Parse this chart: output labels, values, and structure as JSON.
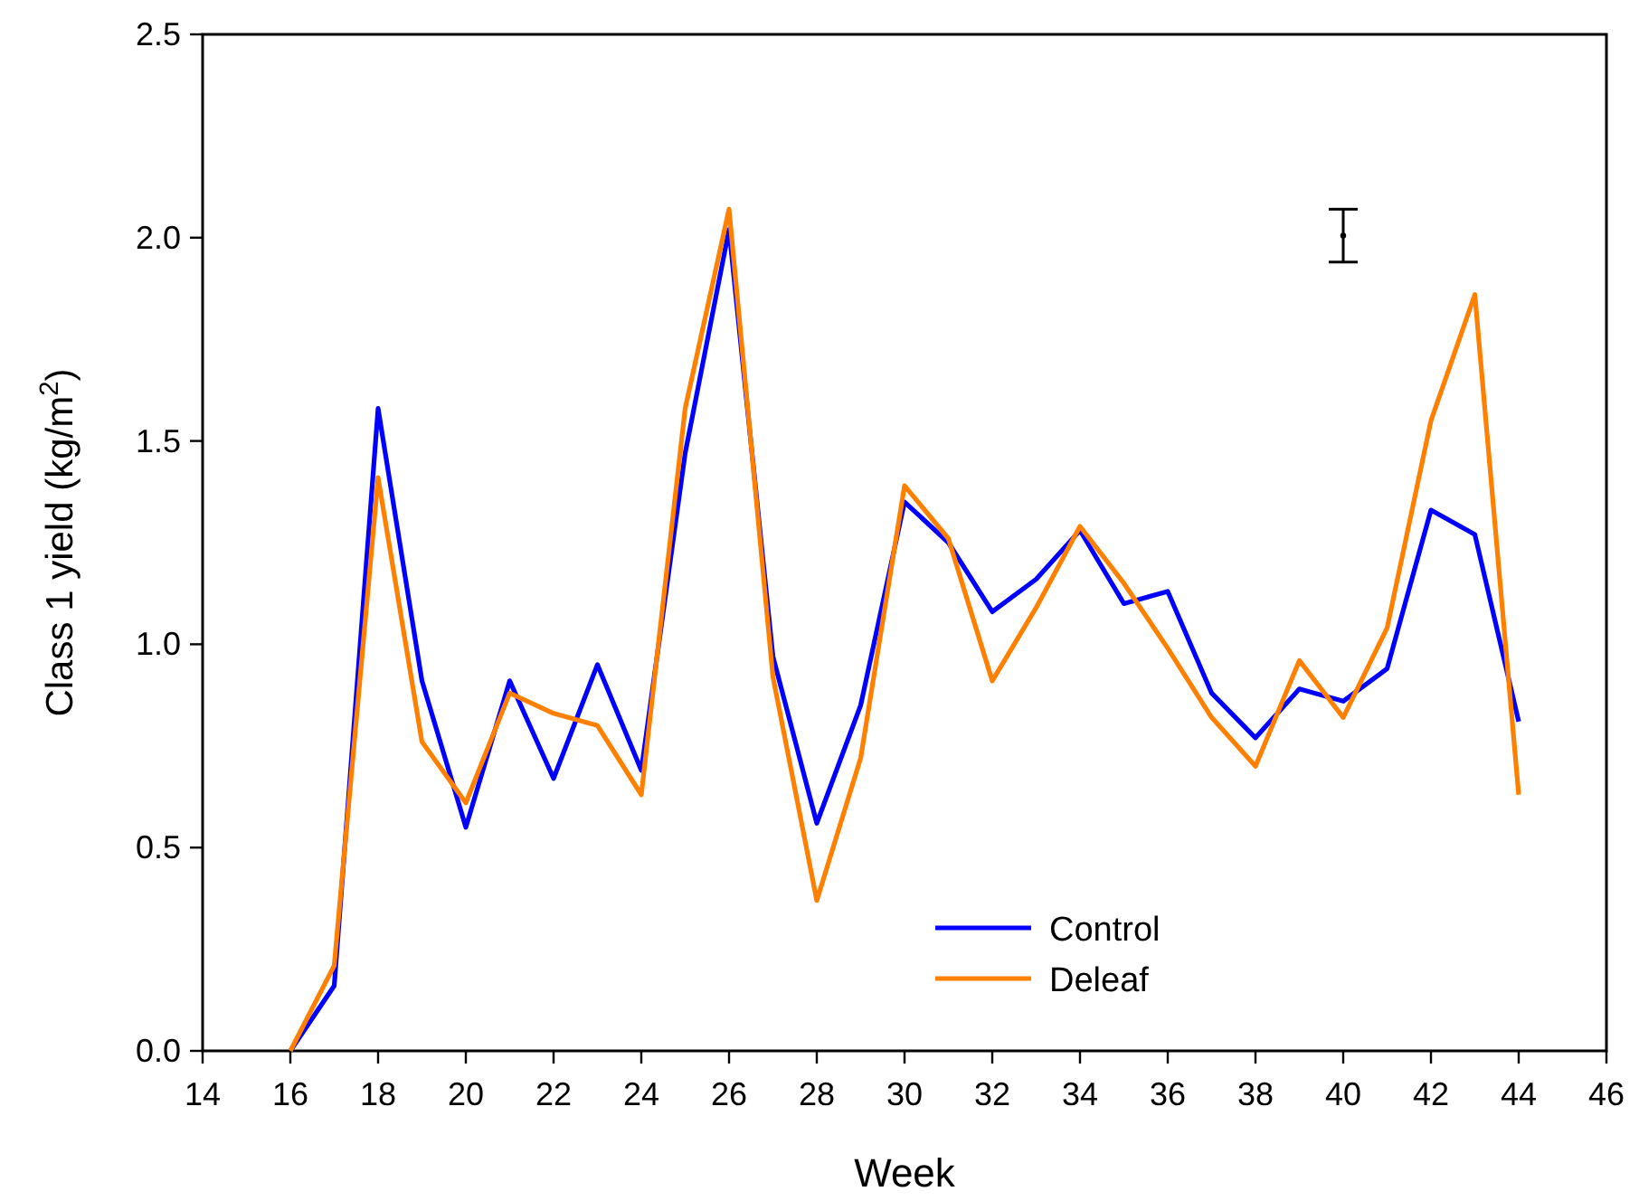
{
  "chart_data": {
    "type": "line",
    "xlabel": "Week",
    "ylabel": "Class 1 yield (kg/m$^{2}$)",
    "x": [
      16,
      17,
      18,
      19,
      20,
      21,
      22,
      23,
      24,
      25,
      26,
      27,
      28,
      29,
      30,
      31,
      32,
      33,
      34,
      35,
      36,
      37,
      38,
      39,
      40,
      41,
      42,
      43,
      44
    ],
    "series": [
      {
        "name": "Control",
        "color": "#0000ff",
        "values": [
          0,
          0.16,
          1.58,
          0.91,
          0.55,
          0.91,
          0.67,
          0.95,
          0.69,
          1.47,
          2.02,
          0.97,
          0.56,
          0.85,
          1.35,
          1.25,
          1.08,
          1.16,
          1.28,
          1.1,
          1.13,
          0.88,
          0.77,
          0.89,
          0.86,
          0.94,
          1.33,
          1.27,
          0.81
        ]
      },
      {
        "name": "Deleaf",
        "color": "#ff8000",
        "values": [
          0,
          0.21,
          1.41,
          0.76,
          0.61,
          0.88,
          0.83,
          0.8,
          0.63,
          1.58,
          2.07,
          0.92,
          0.37,
          0.72,
          1.39,
          1.26,
          0.91,
          1.09,
          1.29,
          1.15,
          0.99,
          0.82,
          0.7,
          0.96,
          0.82,
          1.04,
          1.55,
          1.86,
          0.63
        ]
      },
      {
        "type": "scatter",
        "color": "#000000",
        "marker": "circle",
        "x": [
          40
        ],
        "values": [
          2.005
        ],
        "errors": [
          0.065
        ]
      }
    ],
    "xlim": [
      14,
      46
    ],
    "xticks": [
      14,
      16,
      18,
      20,
      22,
      24,
      26,
      28,
      30,
      32,
      34,
      36,
      38,
      40,
      42,
      44,
      46
    ],
    "ylim": [
      0,
      2.5
    ],
    "yticks": [
      {
        "value": 0,
        "label": "0.0"
      },
      {
        "value": 0.5,
        "label": "0.5"
      },
      {
        "value": 1,
        "label": "1.0"
      },
      {
        "value": 1.5,
        "label": "1.5"
      },
      {
        "value": 2,
        "label": "2.0"
      },
      {
        "value": 2.5,
        "label": "2.5"
      }
    ],
    "grid": false,
    "legend": "bottom",
    "marker": "none",
    "line_style": "solid"
  }
}
